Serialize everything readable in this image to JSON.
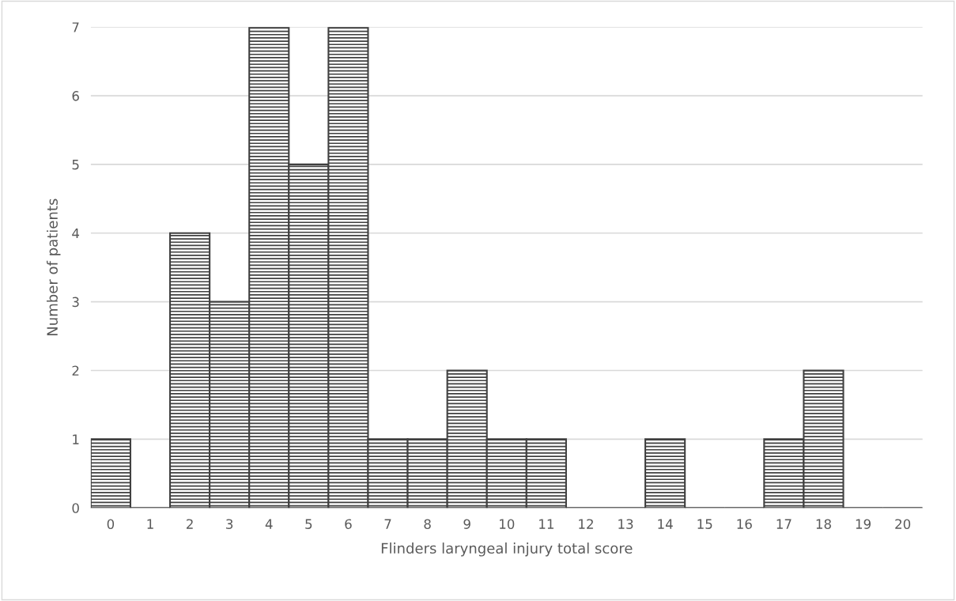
{
  "chart_data": {
    "type": "bar",
    "xlabel": "Flinders laryngeal injury total score",
    "ylabel": "Number of patients",
    "categories": [
      "0",
      "1",
      "2",
      "3",
      "4",
      "5",
      "6",
      "7",
      "8",
      "9",
      "10",
      "11",
      "12",
      "13",
      "14",
      "15",
      "16",
      "17",
      "18",
      "19",
      "20"
    ],
    "values": [
      1,
      0,
      4,
      3,
      7,
      5,
      7,
      1,
      1,
      2,
      1,
      1,
      0,
      0,
      1,
      0,
      0,
      1,
      2,
      0,
      0
    ],
    "color": "#404040",
    "ylim": [
      0,
      7
    ],
    "yticks": [
      0,
      1,
      2,
      3,
      4,
      5,
      6,
      7
    ],
    "grid": "y"
  }
}
